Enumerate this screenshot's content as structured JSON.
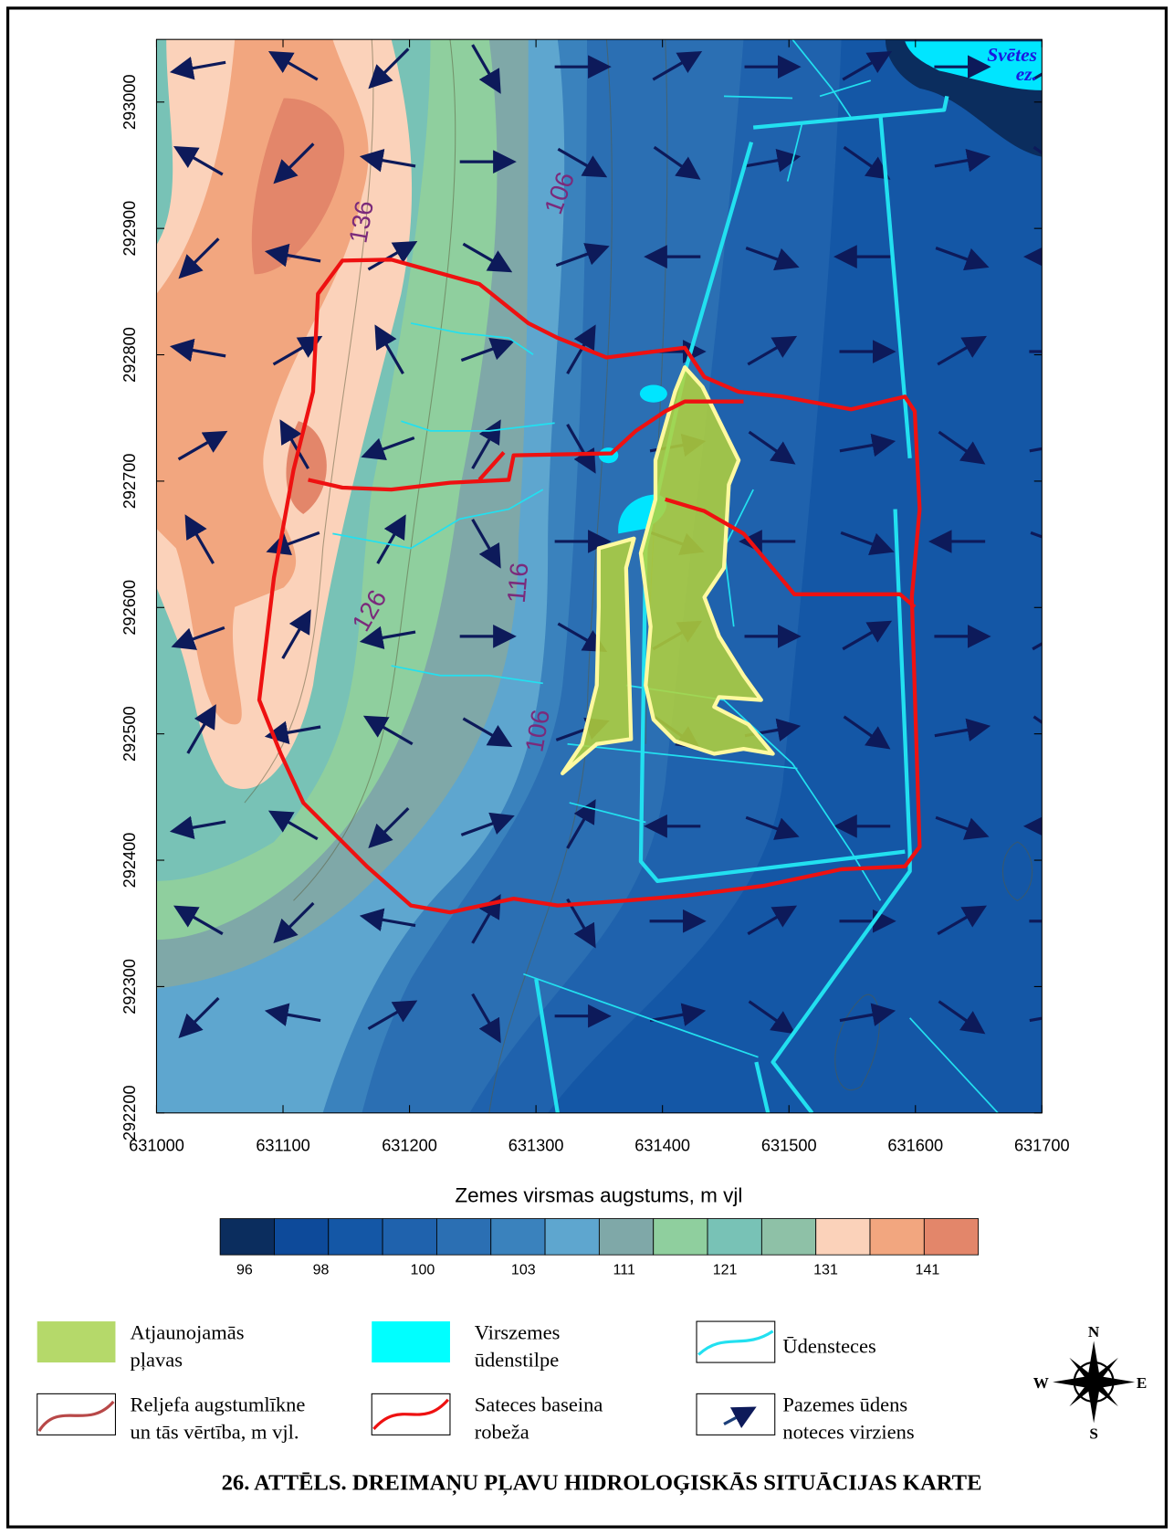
{
  "map": {
    "x_ticks": [
      631000,
      631100,
      631200,
      631300,
      631400,
      631500,
      631600,
      631700
    ],
    "y_ticks": [
      292200,
      292300,
      292400,
      292500,
      292600,
      292700,
      292800,
      292900,
      293000
    ],
    "contour_labels": [
      "136",
      "106",
      "126",
      "116",
      "106"
    ],
    "lake_label": [
      "Svētes",
      "ez."
    ],
    "colorbar": {
      "title": "Zemes virsmas augstums, m vjl",
      "labels": [
        96,
        98,
        100,
        103,
        111,
        121,
        131,
        141
      ],
      "colors": [
        "#0b2d5e",
        "#0d4a9a",
        "#1457a6",
        "#1f62ad",
        "#2b6fb3",
        "#3a82bd",
        "#5ea6cf",
        "#7fa8a8",
        "#8fcf9e",
        "#78c2b6",
        "#8ec1a7",
        "#fbd2ba",
        "#f2a67f",
        "#e3866a"
      ]
    },
    "legend": [
      {
        "label": [
          "Atjaunojamās",
          "pļavas"
        ]
      },
      {
        "label": [
          "Virszemes",
          "ūdenstilpe"
        ]
      },
      {
        "label": [
          "Ūdensteces"
        ]
      },
      {
        "label": [
          "Reljefa augstumlīkne",
          "un tās vērtība, m vjl."
        ]
      },
      {
        "label": [
          "Sateces baseina",
          "robeža"
        ]
      },
      {
        "label": [
          "Pazemes ūdens",
          "noteces virziens"
        ]
      }
    ],
    "compass": [
      "N",
      "S",
      "W",
      "E"
    ],
    "caption": "26. ATTĒLS. DREIMAŅU PĻAVU HIDROLOĢISKĀS SITUĀCIJAS KARTE"
  }
}
